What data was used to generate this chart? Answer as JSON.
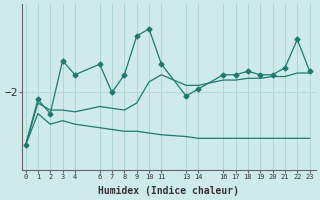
{
  "xlabel": "Humidex (Indice chaleur)",
  "background_color": "#ceeaea",
  "line_color": "#1e7a6e",
  "grid_color_v": "#aed4d4",
  "grid_color_h": "#b8d8d8",
  "x_ticks": [
    0,
    1,
    2,
    3,
    4,
    6,
    7,
    8,
    9,
    10,
    11,
    13,
    14,
    16,
    17,
    18,
    19,
    20,
    21,
    22,
    23
  ],
  "x_tick_labels": [
    "0",
    "1",
    "2",
    "3",
    "4",
    "6",
    "7",
    "8",
    "9",
    "10",
    "11",
    "13",
    "14",
    "16",
    "17",
    "18",
    "19",
    "20",
    "21",
    "22",
    "23"
  ],
  "y_label_val": -2,
  "y_label_text": "−2",
  "series1_x": [
    0,
    1,
    2,
    3,
    4,
    6,
    7,
    8,
    9,
    10,
    11,
    13,
    14,
    16,
    17,
    18,
    19,
    20,
    21,
    22,
    23
  ],
  "series1_y": [
    -3.5,
    -2.2,
    -2.6,
    -1.1,
    -1.5,
    -1.2,
    -2.0,
    -1.5,
    -0.4,
    -0.2,
    -1.2,
    -2.1,
    -1.9,
    -1.5,
    -1.5,
    -1.4,
    -1.5,
    -1.5,
    -1.3,
    -0.5,
    -1.4
  ],
  "series2_x": [
    0,
    1,
    2,
    3,
    4,
    6,
    7,
    8,
    9,
    10,
    11,
    13,
    14,
    16,
    17,
    18,
    19,
    20,
    21,
    22,
    23
  ],
  "series2_y": [
    -3.5,
    -2.3,
    -2.5,
    -2.5,
    -2.55,
    -2.4,
    -2.45,
    -2.5,
    -2.3,
    -1.7,
    -1.5,
    -1.8,
    -1.8,
    -1.65,
    -1.65,
    -1.6,
    -1.6,
    -1.55,
    -1.55,
    -1.45,
    -1.45
  ],
  "series3_x": [
    0,
    1,
    2,
    3,
    4,
    6,
    7,
    8,
    9,
    10,
    11,
    13,
    14,
    16,
    17,
    18,
    19,
    20,
    21,
    22,
    23
  ],
  "series3_y": [
    -3.5,
    -2.6,
    -2.9,
    -2.8,
    -2.9,
    -3.0,
    -3.05,
    -3.1,
    -3.1,
    -3.15,
    -3.2,
    -3.25,
    -3.3,
    -3.3,
    -3.3,
    -3.3,
    -3.3,
    -3.3,
    -3.3,
    -3.3,
    -3.3
  ],
  "ylim": [
    -4.2,
    0.5
  ],
  "xlim": [
    -0.3,
    23.5
  ]
}
